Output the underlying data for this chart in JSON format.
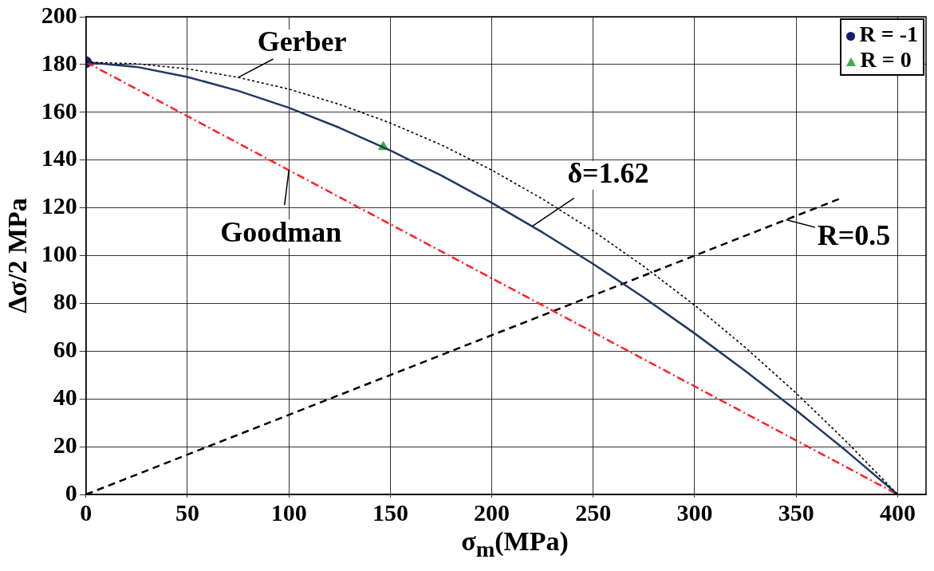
{
  "chart_data": {
    "type": "line",
    "xlabel": "σ$_{m}$(MPa)",
    "ylabel": "Δσ/2 MPa",
    "xlim": [
      0,
      414
    ],
    "ylim": [
      0,
      200
    ],
    "xticks": [
      0,
      50,
      100,
      150,
      200,
      250,
      300,
      350,
      400
    ],
    "yticks": [
      0,
      20,
      40,
      60,
      80,
      100,
      120,
      140,
      160,
      180,
      200
    ],
    "grid": true,
    "legend": "top right",
    "series": [
      {
        "color": "#000000",
        "line_style": "dotted",
        "marker": "none",
        "x": [
          0,
          25,
          50,
          75,
          100,
          125,
          150,
          175,
          200,
          225,
          250,
          275,
          300,
          325,
          350,
          375,
          400
        ],
        "values": [
          181,
          180.3,
          178.2,
          174.6,
          169.7,
          163.3,
          155.5,
          146.4,
          135.8,
          123.7,
          110.3,
          95.4,
          79.2,
          61.5,
          42.4,
          21.9,
          0
        ]
      },
      {
        "color": "#1f3864",
        "line_style": "solid",
        "marker": "none",
        "x": [
          0,
          25,
          50,
          75,
          100,
          125,
          150,
          175,
          200,
          225,
          250,
          275,
          300,
          325,
          350,
          375,
          400
        ],
        "values": [
          181,
          179.0,
          174.8,
          169.0,
          161.9,
          153.5,
          144.0,
          133.6,
          122.1,
          109.7,
          96.5,
          82.4,
          67.4,
          51.7,
          35.2,
          18.0,
          0
        ]
      },
      {
        "color": "#ff2020",
        "line_style": "dashdot",
        "marker": "none",
        "x": [
          0,
          400
        ],
        "values": [
          181,
          0
        ]
      },
      {
        "color": "#000000",
        "line_style": "dashed",
        "marker": "none",
        "x": [
          0,
          372
        ],
        "values": [
          0,
          124
        ]
      },
      {
        "type": "scatter",
        "name": "R = -1",
        "color": "#1a1a6e",
        "marker": "circle",
        "x": [
          0
        ],
        "values": [
          181
        ]
      },
      {
        "type": "scatter",
        "name": "R =  0",
        "color": "#3cb043",
        "marker": "triangle",
        "x": [
          146.5
        ],
        "values": [
          145.5
        ]
      }
    ],
    "annotations": [
      {
        "text": "Gerber",
        "x": 75,
        "y": 174.6
      },
      {
        "text": "Goodman",
        "x": 100,
        "y": 135.8
      },
      {
        "text": "δ=1.62",
        "x": 220,
        "y": 112.3
      },
      {
        "text": "R=0.5",
        "x": 345,
        "y": 115
      }
    ]
  }
}
